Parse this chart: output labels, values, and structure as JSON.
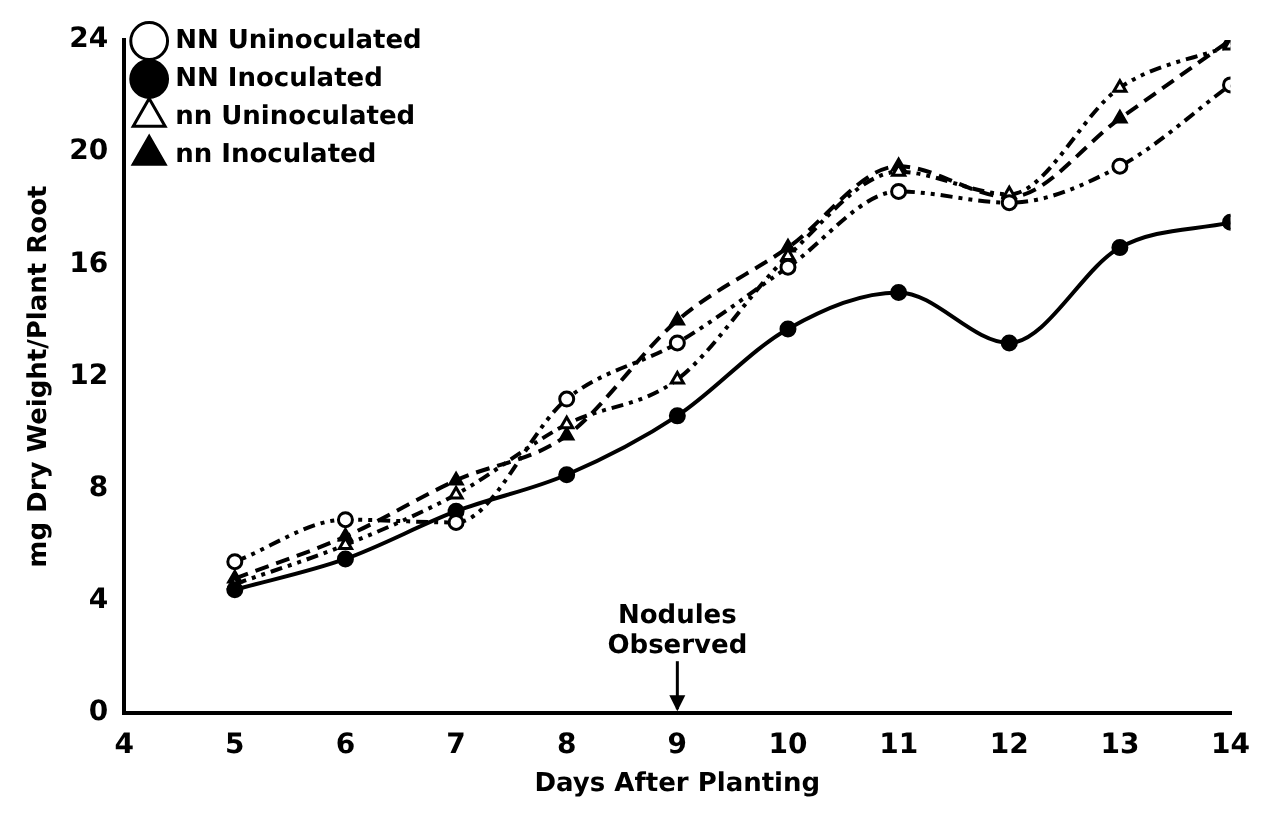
{
  "chart_data": {
    "type": "line",
    "xlabel": "Days After Planting",
    "ylabel": "mg Dry Weight/Plant Root",
    "x": [
      5,
      6,
      7,
      8,
      9,
      10,
      11,
      12,
      13,
      14
    ],
    "series": [
      {
        "name": "NN Uninoculated",
        "color": "#000000",
        "marker": "circle",
        "line_style": "dotted",
        "values": [
          5.4,
          6.9,
          6.8,
          11.2,
          13.2,
          15.9,
          18.6,
          18.2,
          19.5,
          22.4
        ]
      },
      {
        "name": "NN Inoculated",
        "color": "#000000",
        "marker": "circle",
        "line_style": "solid",
        "values": [
          4.4,
          5.5,
          7.2,
          8.5,
          10.6,
          13.7,
          15.0,
          13.2,
          16.6,
          17.5
        ]
      },
      {
        "name": "nn Uninoculated",
        "color": "#000000",
        "marker": "triangle",
        "line_style": "dotted",
        "values": [
          4.6,
          6.0,
          7.8,
          10.3,
          11.9,
          16.3,
          19.3,
          18.5,
          22.3,
          23.8
        ]
      },
      {
        "name": "nn Inoculated",
        "color": "#000000",
        "marker": "triangle",
        "line_style": "dashed",
        "values": [
          4.8,
          6.3,
          8.3,
          9.9,
          14.0,
          16.6,
          19.5,
          18.4,
          21.2,
          24.0
        ]
      }
    ],
    "xlim": [
      4,
      14
    ],
    "xticks": [
      4,
      5,
      6,
      7,
      8,
      9,
      10,
      11,
      12,
      13,
      14
    ],
    "ylim": [
      0,
      24
    ],
    "yticks": [
      0,
      4,
      8,
      12,
      16,
      20,
      24
    ],
    "grid": false,
    "legend": "top left",
    "annotations": [
      "Nodules\nObserved"
    ]
  }
}
